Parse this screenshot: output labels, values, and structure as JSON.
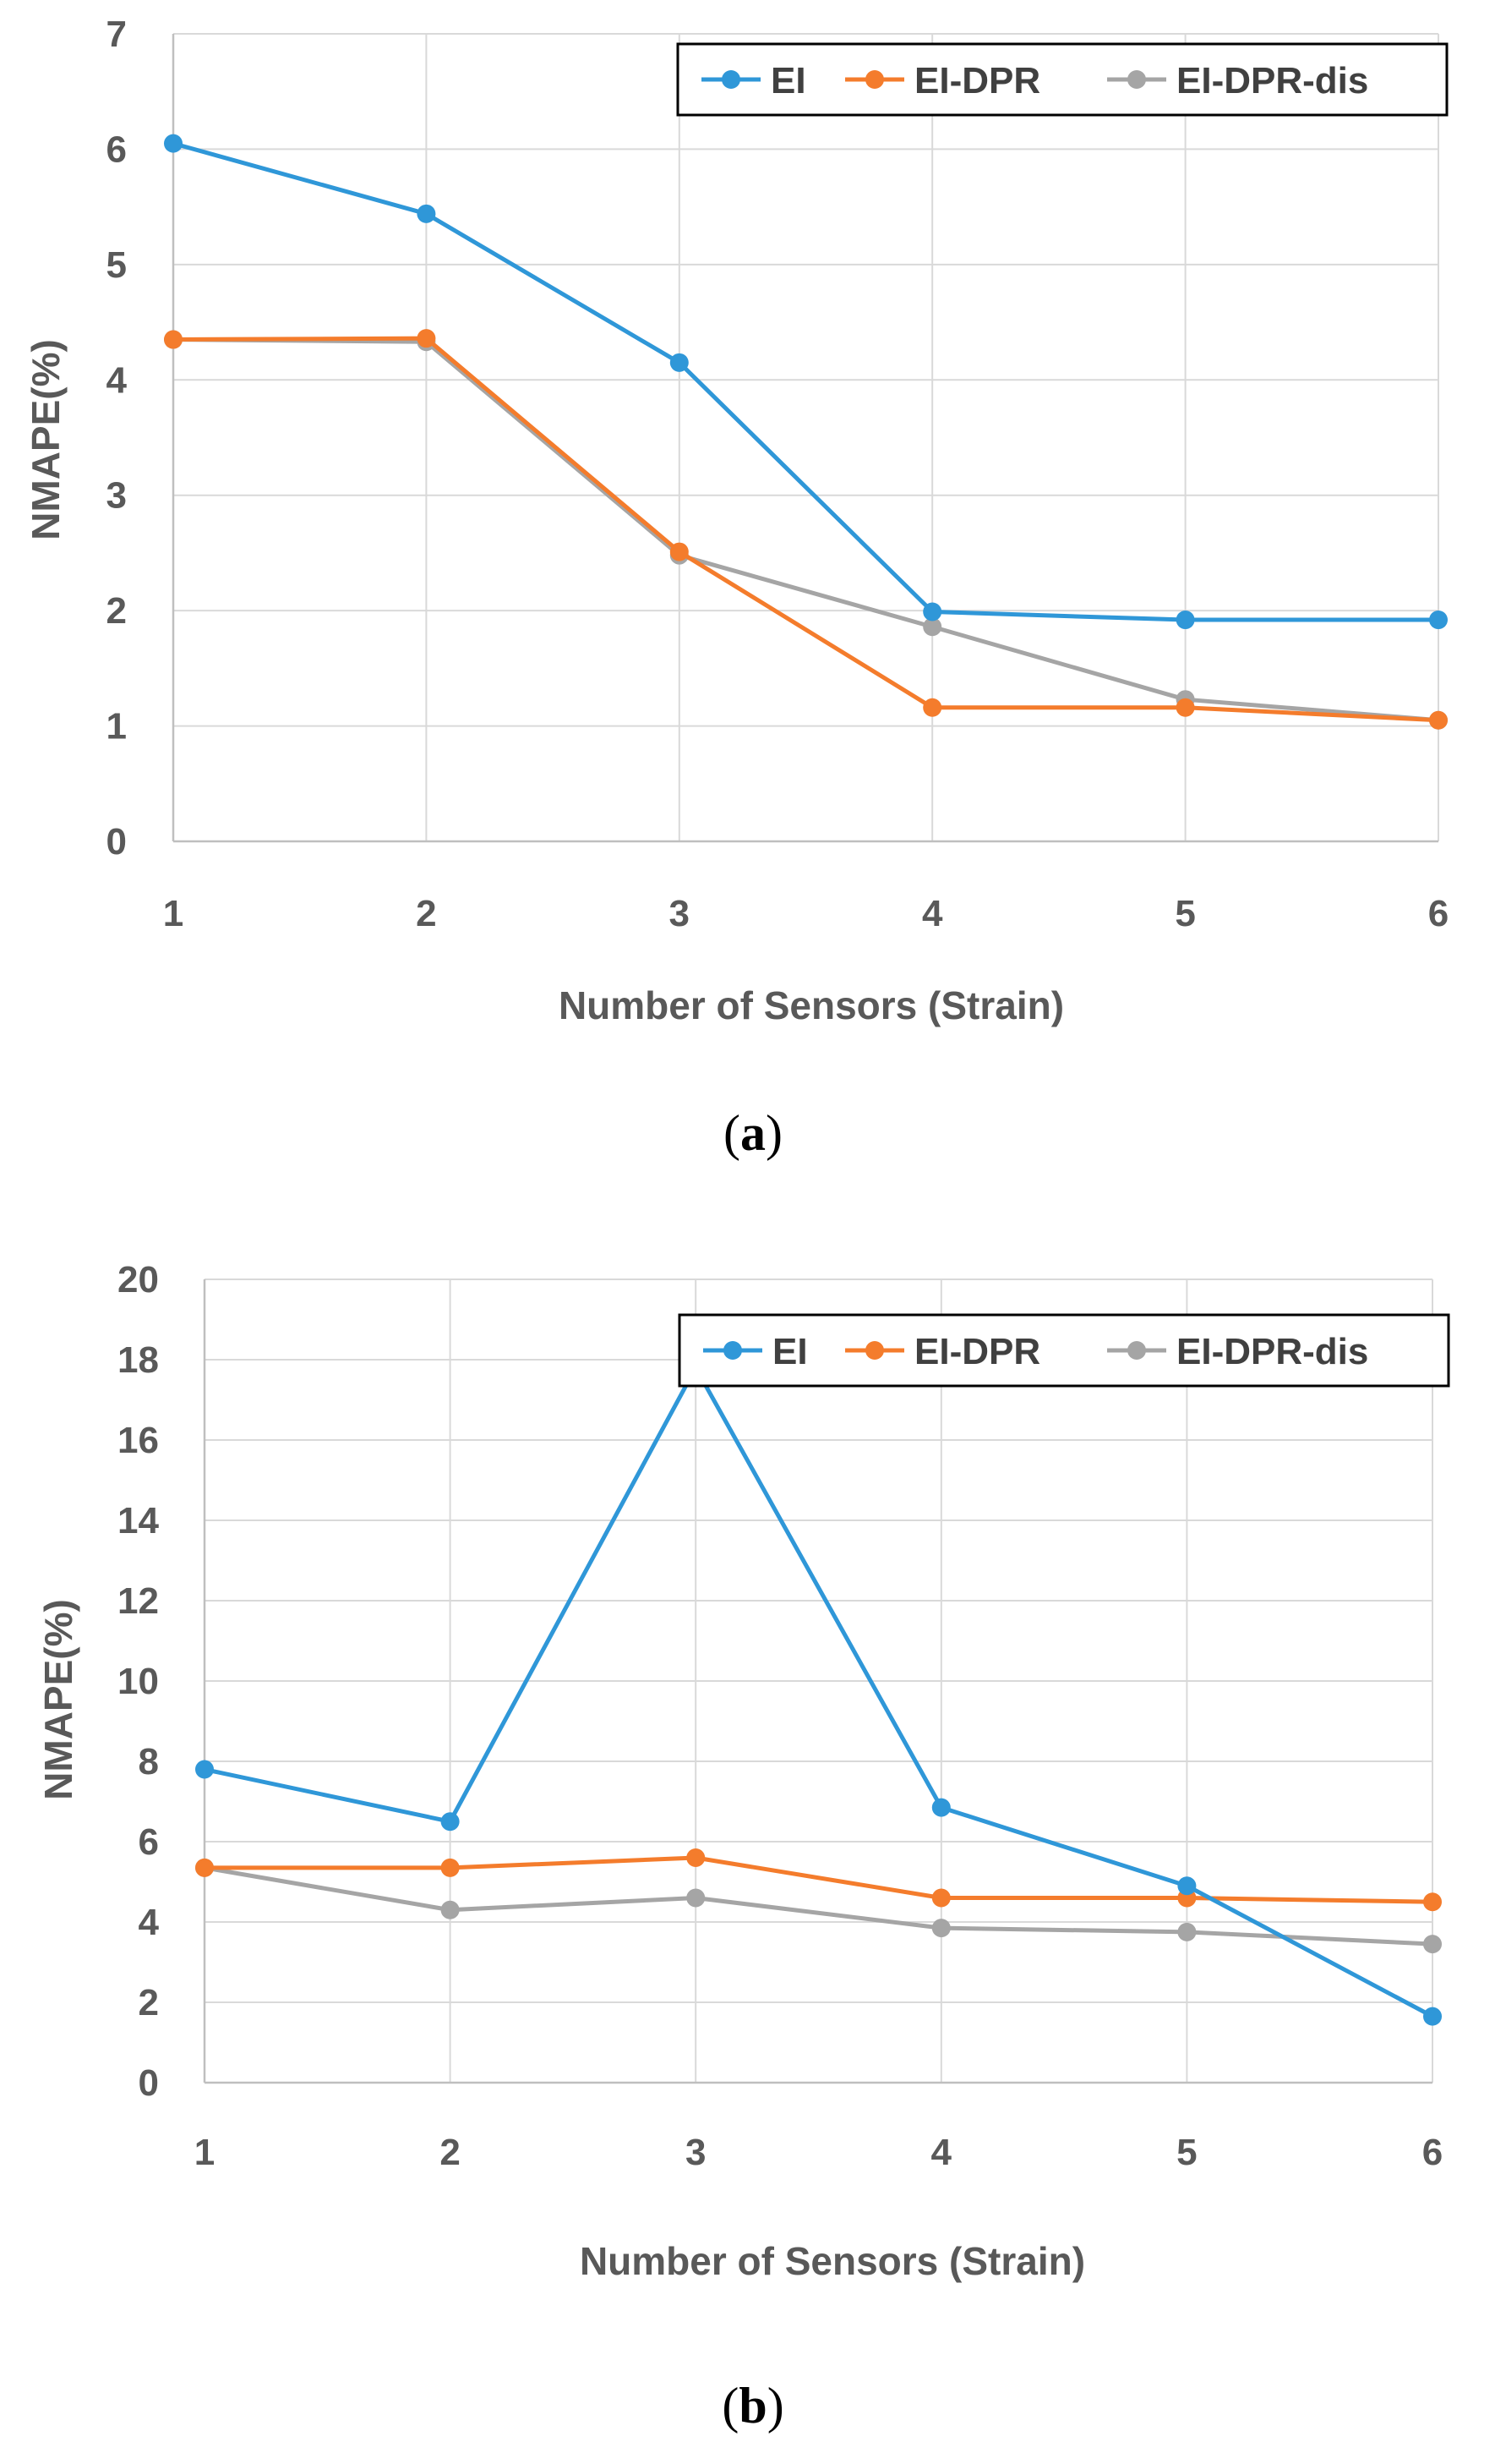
{
  "chart_data": [
    {
      "type": "line",
      "title": "",
      "panel_label": "a",
      "xlabel": "Number of Sensors (Strain)",
      "ylabel": "NMAPE(%)",
      "x": [
        1,
        2,
        3,
        4,
        5,
        6
      ],
      "ylim": [
        0,
        7
      ],
      "yticks": [
        0,
        1,
        2,
        3,
        4,
        5,
        6,
        7
      ],
      "grid": true,
      "legend": "top-right",
      "series": [
        {
          "name": "EI",
          "color": "#2f97d8",
          "values": [
            6.05,
            5.44,
            4.15,
            1.99,
            1.92,
            1.92
          ]
        },
        {
          "name": "EI-DPR",
          "color": "#f47c2c",
          "values": [
            4.35,
            4.36,
            2.51,
            1.16,
            1.16,
            1.05
          ]
        },
        {
          "name": "EI-DPR-dis",
          "color": "#a5a5a5",
          "values": [
            4.35,
            4.33,
            2.48,
            1.86,
            1.23,
            1.05
          ]
        }
      ]
    },
    {
      "type": "line",
      "title": "",
      "panel_label": "b",
      "xlabel": "Number of Sensors (Strain)",
      "ylabel": "NMAPE(%)",
      "x": [
        1,
        2,
        3,
        4,
        5,
        6
      ],
      "ylim": [
        0,
        20
      ],
      "yticks": [
        0,
        2,
        4,
        6,
        8,
        10,
        12,
        14,
        16,
        18,
        20
      ],
      "grid": true,
      "legend": "top-right",
      "series": [
        {
          "name": "EI",
          "color": "#2f97d8",
          "values": [
            7.8,
            6.5,
            17.8,
            6.85,
            4.9,
            1.65
          ]
        },
        {
          "name": "EI-DPR",
          "color": "#f47c2c",
          "values": [
            5.35,
            5.35,
            5.6,
            4.6,
            4.6,
            4.5
          ]
        },
        {
          "name": "EI-DPR-dis",
          "color": "#a5a5a5",
          "values": [
            5.35,
            4.3,
            4.6,
            3.85,
            3.75,
            3.45
          ]
        }
      ]
    }
  ]
}
